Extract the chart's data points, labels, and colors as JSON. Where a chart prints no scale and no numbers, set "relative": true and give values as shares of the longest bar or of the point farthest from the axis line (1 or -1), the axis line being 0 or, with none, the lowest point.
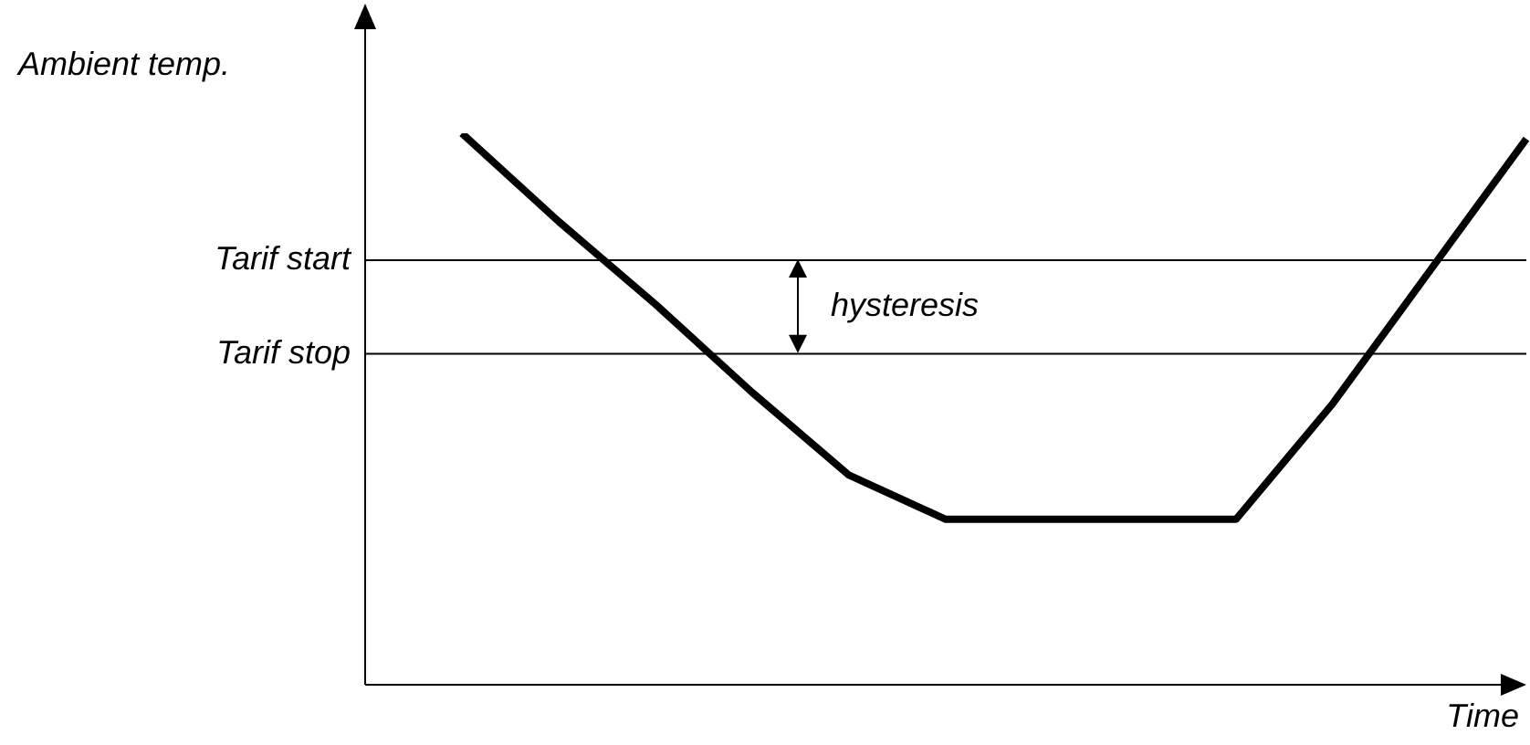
{
  "chart_data": {
    "type": "line",
    "relative": true,
    "ylabel": "Ambient temp.",
    "xlabel": "Time",
    "categories": [
      null,
      null,
      null,
      null,
      null,
      null,
      null,
      null,
      null,
      null,
      null,
      null,
      null
    ],
    "series": [
      {
        "color": "#000000",
        "values": [
          null,
          1.0,
          0.84,
          0.69,
          0.53,
          0.38,
          0.3,
          0.3,
          0.3,
          0.3,
          0.51,
          0.75,
          0.99
        ]
      }
    ],
    "ref_lines": [
      {
        "axis": "y",
        "value": 0.77,
        "label": "Tarif start",
        "color": "#000000"
      },
      {
        "axis": "y",
        "value": 0.6,
        "label": "Tarif stop",
        "color": "#000000"
      }
    ],
    "annotations": [
      "hysteresis"
    ],
    "marker": "none",
    "grid": false,
    "legend": false
  }
}
